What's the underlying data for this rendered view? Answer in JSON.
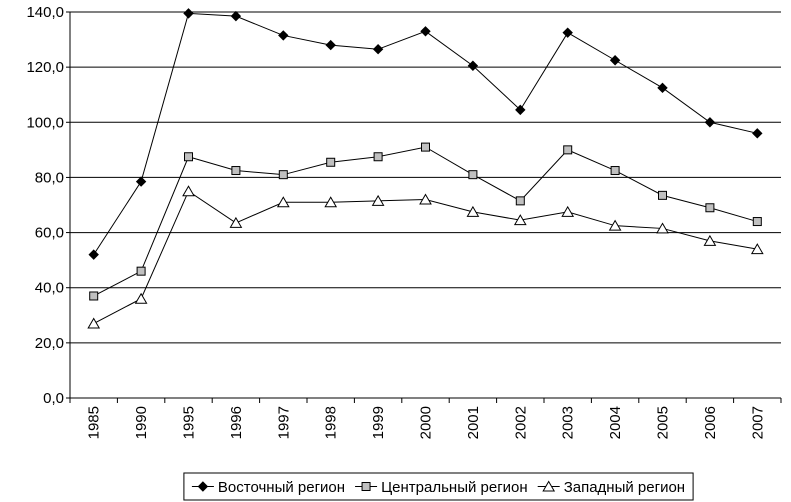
{
  "chart_data": {
    "type": "line",
    "categories": [
      "1985",
      "1990",
      "1995",
      "1996",
      "1997",
      "1998",
      "1999",
      "2000",
      "2001",
      "2002",
      "2003",
      "2004",
      "2005",
      "2006",
      "2007"
    ],
    "series": [
      {
        "name": "Восточный регион",
        "color": "#000000",
        "marker": "diamond",
        "marker_fill": "#000000",
        "values": [
          52,
          78.5,
          139.5,
          138.5,
          131.5,
          128,
          126.5,
          133,
          120.5,
          104.5,
          132.5,
          122.5,
          112.5,
          100,
          96
        ]
      },
      {
        "name": "Центральный регион",
        "color": "#000000",
        "marker": "square",
        "marker_fill": "#c0c0c0",
        "values": [
          37,
          46,
          87.5,
          82.5,
          81,
          85.5,
          87.5,
          91,
          81,
          71.5,
          90,
          82.5,
          73.5,
          69,
          64
        ]
      },
      {
        "name": "Западный регион",
        "color": "#000000",
        "marker": "triangle",
        "marker_fill": "#ffffff",
        "values": [
          27,
          36,
          75,
          63.5,
          71,
          71,
          71.5,
          72,
          67.5,
          64.5,
          67.5,
          62.5,
          61.5,
          57,
          54
        ]
      }
    ],
    "ylim": [
      0,
      140
    ],
    "yticks": [
      {
        "value": 0,
        "label": "0,0"
      },
      {
        "value": 20,
        "label": "20,0"
      },
      {
        "value": 40,
        "label": "40,0"
      },
      {
        "value": 60,
        "label": "60,0"
      },
      {
        "value": 80,
        "label": "80,0"
      },
      {
        "value": 100,
        "label": "100,0"
      },
      {
        "value": 120,
        "label": "120,0"
      },
      {
        "value": 140,
        "label": "140,0"
      }
    ],
    "grid": true,
    "legend": "bottom"
  }
}
